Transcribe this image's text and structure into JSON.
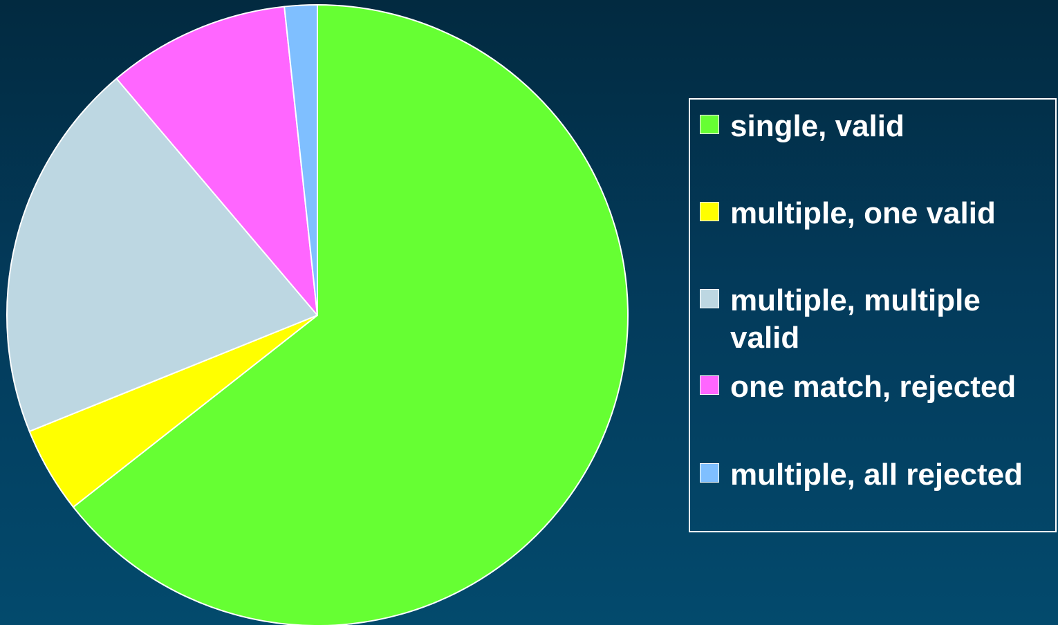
{
  "chart_data": {
    "type": "pie",
    "categories": [
      "single, valid",
      "multiple, one valid",
      "multiple, multiple valid",
      "one match, rejected",
      "multiple, all rejected"
    ],
    "values": [
      64.4,
      4.5,
      19.9,
      9.5,
      1.7
    ],
    "colors": [
      "#66ff33",
      "#ffff00",
      "#bdd7e2",
      "#ff66ff",
      "#7fbfff"
    ],
    "start_angle_deg": 0,
    "direction": "clockwise",
    "legend": "right"
  },
  "legend": {
    "items": [
      {
        "label": "single, valid",
        "color": "#66ff33"
      },
      {
        "label": "multiple, one valid",
        "color": "#ffff00"
      },
      {
        "label": "multiple, multiple valid",
        "color": "#bdd7e2"
      },
      {
        "label": "one match, rejected",
        "color": "#ff66ff"
      },
      {
        "label": "multiple, all rejected",
        "color": "#7fbfff"
      }
    ]
  }
}
